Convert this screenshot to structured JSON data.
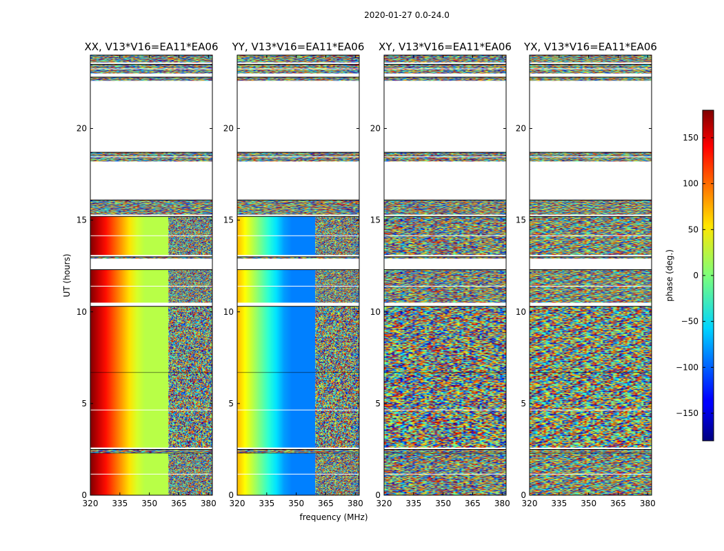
{
  "chart_data": {
    "type": "heatmap",
    "suptitle": "2020-01-27 0.0-24.0",
    "xlabel": "frequency (MHz)",
    "ylabel": "UT (hours)",
    "xlim": [
      320,
      382
    ],
    "ylim": [
      0,
      24
    ],
    "xticks": [
      320,
      335,
      350,
      365,
      380
    ],
    "yticks": [
      0,
      5,
      10,
      15,
      20
    ],
    "colorbar": {
      "label": "phase (deg.)",
      "range": [
        -180,
        180
      ],
      "ticks": [
        150,
        100,
        50,
        0,
        -50,
        -100,
        -150
      ],
      "tick_labels": [
        "150",
        "100",
        "50",
        "0",
        "−50",
        "−100",
        "−150"
      ],
      "colormap": "jet"
    },
    "panels": [
      {
        "title": "XX, V13*V16=EA11*EA06",
        "structure": "gradient"
      },
      {
        "title": "YY, V13*V16=EA11*EA06",
        "structure": "gradient"
      },
      {
        "title": "XY, V13*V16=EA11*EA06",
        "structure": "noise"
      },
      {
        "title": "YX, V13*V16=EA11*EA06",
        "structure": "noise"
      }
    ],
    "data_blocks_hours": [
      [
        0.0,
        2.3
      ],
      [
        2.3,
        2.5
      ],
      [
        2.6,
        6.7
      ],
      [
        6.7,
        10.3
      ],
      [
        10.5,
        12.3
      ],
      [
        12.9,
        13.0
      ],
      [
        13.1,
        15.2
      ],
      [
        15.3,
        16.1
      ],
      [
        18.2,
        18.7
      ],
      [
        22.6,
        22.8
      ],
      [
        23.0,
        23.5
      ],
      [
        23.6,
        24.0
      ]
    ],
    "gradient_phase_end_deg": {
      "XX": [
        180,
        20
      ],
      "YY": [
        70,
        -90
      ]
    }
  }
}
